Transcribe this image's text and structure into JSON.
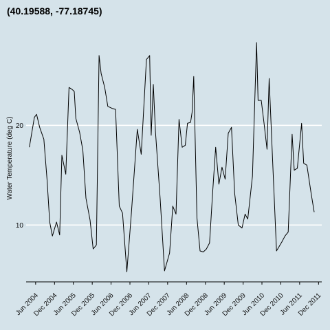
{
  "chart_data": {
    "type": "line",
    "title": "(40.19588, -77.18745)",
    "xlabel": "",
    "ylabel": "Water Temperature (deg C)",
    "ylim": [
      4.3,
      30.5
    ],
    "xlim": [
      "2004-03-01",
      "2012-01-01"
    ],
    "grid": "horizontal, white",
    "legend": "none",
    "y_ticks": [
      10,
      20
    ],
    "x_ticks": [
      {
        "date": "2004-06-01",
        "label": "Jun 2004"
      },
      {
        "date": "2004-12-01",
        "label": "Dec 2004"
      },
      {
        "date": "2005-06-01",
        "label": "Jun 2005"
      },
      {
        "date": "2005-12-01",
        "label": "Dec 2005"
      },
      {
        "date": "2006-06-01",
        "label": "Jun 2006"
      },
      {
        "date": "2006-12-01",
        "label": "Dec 2006"
      },
      {
        "date": "2007-06-01",
        "label": "Jun 2007"
      },
      {
        "date": "2007-12-01",
        "label": "Dec 2007"
      },
      {
        "date": "2008-06-01",
        "label": "Jun 2008"
      },
      {
        "date": "2008-12-01",
        "label": "Dec 2008"
      },
      {
        "date": "2009-06-01",
        "label": "Jun 2009"
      },
      {
        "date": "2009-12-01",
        "label": "Dec 2009"
      },
      {
        "date": "2010-06-01",
        "label": "Jun 2010"
      },
      {
        "date": "2010-12-01",
        "label": "Dec 2010"
      },
      {
        "date": "2011-06-01",
        "label": "Jun 2011"
      },
      {
        "date": "2011-12-01",
        "label": "Dec 2011"
      }
    ],
    "series": [
      {
        "color": "#000000",
        "points": [
          [
            "2004-04-01",
            17.8
          ],
          [
            "2004-05-20",
            20.8
          ],
          [
            "2004-06-10",
            21.1
          ],
          [
            "2004-07-10",
            19.8
          ],
          [
            "2004-08-20",
            18.6
          ],
          [
            "2004-09-20",
            14.5
          ],
          [
            "2004-10-15",
            10.3
          ],
          [
            "2004-11-10",
            8.9
          ],
          [
            "2004-12-20",
            10.3
          ],
          [
            "2005-01-20",
            9.0
          ],
          [
            "2005-02-10",
            17.0
          ],
          [
            "2005-03-20",
            15.1
          ],
          [
            "2005-04-20",
            23.8
          ],
          [
            "2005-05-20",
            23.6
          ],
          [
            "2005-06-10",
            23.4
          ],
          [
            "2005-06-25",
            20.7
          ],
          [
            "2005-08-01",
            19.3
          ],
          [
            "2005-09-01",
            17.5
          ],
          [
            "2005-10-01",
            12.7
          ],
          [
            "2005-11-10",
            10.5
          ],
          [
            "2005-12-10",
            7.6
          ],
          [
            "2006-01-10",
            8.0
          ],
          [
            "2006-02-05",
            27.0
          ],
          [
            "2006-02-25",
            25.2
          ],
          [
            "2006-04-01",
            23.8
          ],
          [
            "2006-05-01",
            21.9
          ],
          [
            "2006-06-10",
            21.7
          ],
          [
            "2006-07-15",
            21.6
          ],
          [
            "2006-08-20",
            11.9
          ],
          [
            "2006-09-20",
            11.2
          ],
          [
            "2006-11-01",
            5.3
          ],
          [
            "2006-12-15",
            11.2
          ],
          [
            "2007-02-10",
            19.6
          ],
          [
            "2007-03-20",
            17.1
          ],
          [
            "2007-05-10",
            26.6
          ],
          [
            "2007-06-10",
            27.0
          ],
          [
            "2007-06-25",
            19.0
          ],
          [
            "2007-07-15",
            24.1
          ],
          [
            "2007-08-05",
            19.4
          ],
          [
            "2007-09-20",
            12.6
          ],
          [
            "2007-11-01",
            5.4
          ],
          [
            "2007-12-20",
            7.2
          ],
          [
            "2008-01-20",
            11.9
          ],
          [
            "2008-02-20",
            11.1
          ],
          [
            "2008-03-20",
            20.6
          ],
          [
            "2008-04-20",
            17.8
          ],
          [
            "2008-05-20",
            18.0
          ],
          [
            "2008-06-10",
            20.2
          ],
          [
            "2008-07-10",
            20.3
          ],
          [
            "2008-07-25",
            21.3
          ],
          [
            "2008-08-10",
            24.9
          ],
          [
            "2008-09-10",
            10.7
          ],
          [
            "2008-10-10",
            7.4
          ],
          [
            "2008-11-10",
            7.3
          ],
          [
            "2008-12-10",
            7.6
          ],
          [
            "2009-01-10",
            8.2
          ],
          [
            "2009-02-10",
            13.5
          ],
          [
            "2009-03-10",
            17.8
          ],
          [
            "2009-04-10",
            14.1
          ],
          [
            "2009-05-10",
            15.8
          ],
          [
            "2009-06-10",
            14.6
          ],
          [
            "2009-07-10",
            19.2
          ],
          [
            "2009-08-10",
            19.8
          ],
          [
            "2009-09-10",
            13.2
          ],
          [
            "2009-10-15",
            10.0
          ],
          [
            "2009-11-20",
            9.7
          ],
          [
            "2009-12-20",
            11.1
          ],
          [
            "2010-01-15",
            10.6
          ],
          [
            "2010-03-01",
            14.9
          ],
          [
            "2010-04-10",
            28.3
          ],
          [
            "2010-04-25",
            22.5
          ],
          [
            "2010-05-25",
            22.5
          ],
          [
            "2010-06-20",
            20.3
          ],
          [
            "2010-07-20",
            17.6
          ],
          [
            "2010-08-10",
            24.7
          ],
          [
            "2010-09-10",
            17.0
          ],
          [
            "2010-10-20",
            7.4
          ],
          [
            "2010-12-10",
            8.3
          ],
          [
            "2011-01-10",
            8.9
          ],
          [
            "2011-02-10",
            9.3
          ],
          [
            "2011-03-20",
            19.1
          ],
          [
            "2011-04-10",
            15.5
          ],
          [
            "2011-05-10",
            15.7
          ],
          [
            "2011-06-20",
            20.2
          ],
          [
            "2011-07-10",
            16.2
          ],
          [
            "2011-08-10",
            16.0
          ],
          [
            "2011-09-20",
            13.2
          ],
          [
            "2011-10-20",
            11.3
          ]
        ]
      }
    ]
  }
}
